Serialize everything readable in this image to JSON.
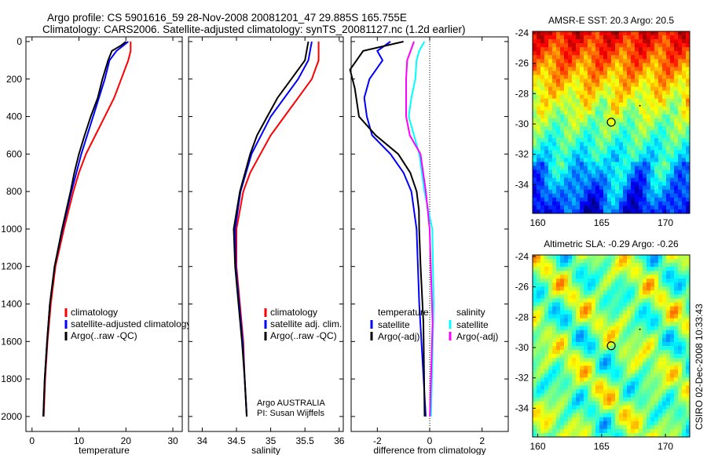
{
  "title": {
    "line1": "Argo profile: CS 5901616_59 28-Nov-2008 20081201_47 29.885S 165.755E",
    "line2": "Climatology: CARS2006. Satellite-adjusted climatology: synTS_20081127.nc (1.2d earlier)"
  },
  "footer_stamp": "CSIRO 02-Dec-2008 10:33:43",
  "credit": {
    "line1": "Argo AUSTRALIA",
    "line2": "PI: Susan Wijffels"
  },
  "colors": {
    "climatology": "#ff0000",
    "satellite": "#0000ff",
    "argo": "#000000",
    "sal_satellite": "#00ffff",
    "sal_argo": "#ff00ff"
  },
  "chart_data": [
    {
      "type": "line",
      "xlabel": "temperature",
      "ylabel": "",
      "xlim": [
        -1.3,
        32
      ],
      "ylim": [
        2080,
        -25
      ],
      "xticks": [
        "0",
        "10",
        "20",
        "30"
      ],
      "xtick_values": [
        0,
        10,
        20,
        30
      ],
      "yticks": [
        "0",
        "200",
        "400",
        "600",
        "800",
        "1000",
        "1200",
        "1400",
        "1600",
        "1800",
        "2000"
      ],
      "ytick_values": [
        0,
        200,
        400,
        600,
        800,
        1000,
        1200,
        1400,
        1600,
        1800,
        2000
      ],
      "legend": [
        "climatology",
        "satellite-adjusted climatology",
        "Argo(..raw -QC)"
      ],
      "legend_position": "lower-right",
      "series": [
        {
          "name": "climatology",
          "color": "#ff0000",
          "depth": [
            0,
            50,
            100,
            200,
            300,
            400,
            500,
            600,
            700,
            800,
            1000,
            1200,
            1400,
            1600,
            1800,
            2000
          ],
          "values": [
            21,
            21,
            20.5,
            19,
            17.5,
            15.5,
            13.5,
            11.5,
            10,
            8.8,
            6.8,
            5,
            4,
            3.3,
            2.8,
            2.5
          ]
        },
        {
          "name": "satellite-adjusted climatology",
          "color": "#0000ff",
          "depth": [
            0,
            20,
            50,
            100,
            200,
            400,
            600,
            800,
            1000,
            1200,
            1400,
            1600,
            1800,
            2000
          ],
          "values": [
            20.5,
            19.5,
            18,
            16.5,
            15.5,
            13,
            10.5,
            8.4,
            6.5,
            4.8,
            3.8,
            3.2,
            2.7,
            2.4
          ]
        },
        {
          "name": "Argo(..raw -QC)",
          "color": "#000000",
          "depth": [
            0,
            20,
            50,
            100,
            200,
            300,
            400,
            500,
            600,
            700,
            800,
            1000,
            1200,
            1400,
            1600,
            1800,
            2000
          ],
          "values": [
            20,
            19,
            17,
            16.2,
            15,
            14,
            12.5,
            11.2,
            10,
            9,
            8.2,
            6.4,
            4.8,
            3.8,
            3.2,
            2.7,
            2.4
          ]
        }
      ]
    },
    {
      "type": "line",
      "xlabel": "salinity",
      "ylabel": "",
      "xlim": [
        33.8,
        36.06
      ],
      "ylim": [
        2080,
        -25
      ],
      "xticks": [
        "34",
        "34.5",
        "35",
        "35.5",
        "36"
      ],
      "xtick_values": [
        34,
        34.5,
        35,
        35.5,
        36
      ],
      "legend": [
        "climatology",
        "satellite adj. clim.",
        "Argo(..raw -QC)"
      ],
      "legend_position": "lower-right",
      "series": [
        {
          "name": "climatology",
          "color": "#ff0000",
          "depth": [
            0,
            100,
            200,
            300,
            400,
            500,
            600,
            700,
            800,
            900,
            1000,
            1200,
            1400,
            1600,
            1800,
            2000
          ],
          "values": [
            35.7,
            35.7,
            35.6,
            35.4,
            35.2,
            35.0,
            34.85,
            34.7,
            34.6,
            34.55,
            34.5,
            34.5,
            34.55,
            34.6,
            34.62,
            34.65
          ]
        },
        {
          "name": "satellite adj. clim.",
          "color": "#0000ff",
          "depth": [
            0,
            100,
            200,
            400,
            600,
            800,
            1000,
            1200,
            1400,
            1600,
            1800,
            2000
          ],
          "values": [
            35.6,
            35.55,
            35.4,
            35.0,
            34.72,
            34.56,
            34.48,
            34.49,
            34.54,
            34.59,
            34.62,
            34.65
          ]
        },
        {
          "name": "Argo(..raw -QC)",
          "color": "#000000",
          "depth": [
            0,
            100,
            200,
            300,
            400,
            500,
            600,
            800,
            1000,
            1200,
            1400,
            1600,
            1800,
            2000
          ],
          "values": [
            35.55,
            35.5,
            35.3,
            35.1,
            34.95,
            34.8,
            34.7,
            34.55,
            34.46,
            34.48,
            34.53,
            34.58,
            34.62,
            34.65
          ]
        }
      ]
    },
    {
      "type": "line",
      "xlabel": "difference from climatology",
      "ylabel": "",
      "xlim": [
        -3,
        3
      ],
      "ylim": [
        2080,
        -25
      ],
      "xticks": [
        "-2",
        "0",
        "2"
      ],
      "xtick_values": [
        -2,
        0,
        2
      ],
      "legend_groups": [
        {
          "title": "temperature",
          "items": [
            "satellite",
            "Argo(-adj)"
          ]
        },
        {
          "title": "salinity",
          "items": [
            "satellite",
            "Argo(-adj)"
          ]
        }
      ],
      "legend_position": "lower-center",
      "series": [
        {
          "name": "temperature satellite",
          "color": "#0000ff",
          "depth": [
            0,
            50,
            100,
            200,
            300,
            400,
            500,
            600,
            700,
            800,
            1000,
            1400,
            2000
          ],
          "values": [
            -1.5,
            -2,
            -1.8,
            -2.3,
            -2.5,
            -2.4,
            -2.2,
            -1.5,
            -1.0,
            -0.7,
            -0.5,
            -0.4,
            -0.15
          ]
        },
        {
          "name": "temperature Argo(-adj)",
          "color": "#000000",
          "depth": [
            0,
            50,
            150,
            250,
            400,
            500,
            600,
            700,
            800,
            900,
            1000,
            1200,
            1500,
            2000
          ],
          "values": [
            -1,
            -2.5,
            -3,
            -2.9,
            -2.7,
            -2.0,
            -1.2,
            -0.8,
            -0.5,
            -0.35,
            -0.4,
            -0.35,
            -0.3,
            -0.2
          ]
        },
        {
          "name": "salinity satellite",
          "color": "#00ffff",
          "depth": [
            0,
            50,
            100,
            200,
            300,
            400,
            500,
            600,
            800,
            1000,
            1400,
            2000
          ],
          "values": [
            -0.2,
            -0.4,
            -0.5,
            -0.55,
            -0.7,
            -0.8,
            -0.6,
            -0.4,
            -0.2,
            0.1,
            0.15,
            0.05
          ]
        },
        {
          "name": "salinity Argo(-adj)",
          "color": "#ff00ff",
          "depth": [
            0,
            100,
            200,
            400,
            500,
            600,
            800,
            1000,
            1500,
            2000
          ],
          "values": [
            -0.6,
            -0.8,
            -0.9,
            -0.9,
            -0.7,
            -0.35,
            -0.15,
            0,
            0.05,
            0
          ]
        }
      ]
    },
    {
      "type": "heatmap",
      "title": "AMSR-E SST: 20.3 Argo: 20.5",
      "xlim": [
        159.6,
        171.9
      ],
      "ylim": [
        -36,
        -24
      ],
      "xticks": [
        "160",
        "165",
        "170"
      ],
      "xtick_values": [
        160,
        165,
        170
      ],
      "yticks": [
        "-24",
        "-26",
        "-28",
        "-30",
        "-32",
        "-34"
      ],
      "ytick_values": [
        -24,
        -26,
        -28,
        -30,
        -32,
        -34
      ],
      "marker": {
        "lon": 165.755,
        "lat": -29.885
      }
    },
    {
      "type": "heatmap",
      "title": "Altimetric SLA: -0.29 Argo: -0.26",
      "xlim": [
        159.6,
        171.9
      ],
      "ylim": [
        -36,
        -24
      ],
      "xticks": [
        "160",
        "165",
        "170"
      ],
      "xtick_values": [
        160,
        165,
        170
      ],
      "yticks": [
        "-24",
        "-26",
        "-28",
        "-30",
        "-32",
        "-34"
      ],
      "ytick_values": [
        -24,
        -26,
        -28,
        -30,
        -32,
        -34
      ],
      "marker": {
        "lon": 165.755,
        "lat": -29.885
      }
    }
  ]
}
